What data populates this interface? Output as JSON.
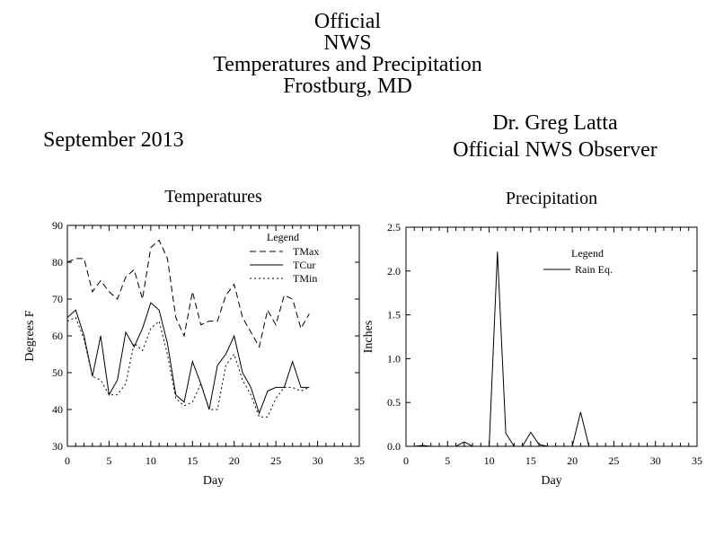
{
  "header": {
    "title_lines": [
      "Official",
      "NWS",
      "Temperatures and Precipitation",
      "Frostburg, MD"
    ],
    "observer_lines": [
      "Dr. Greg Latta",
      "Official NWS Observer"
    ],
    "month": "September 2013"
  },
  "chart_data": [
    {
      "type": "line",
      "title": "Temperatures",
      "xlabel": "Day",
      "ylabel": "Degrees F",
      "xlim": [
        0,
        35
      ],
      "ylim": [
        30,
        90
      ],
      "xticks": [
        0,
        5,
        10,
        15,
        20,
        25,
        30,
        35
      ],
      "yticks": [
        30,
        40,
        50,
        60,
        70,
        80,
        90
      ],
      "grid": false,
      "legend": {
        "title": "Legend",
        "placement": "top-right"
      },
      "series": [
        {
          "name": "TMax",
          "style": "dashed",
          "x": [
            0,
            1,
            2,
            3,
            4,
            5,
            6,
            7,
            8,
            9,
            10,
            11,
            12,
            13,
            14,
            15,
            16,
            17,
            18,
            19,
            20,
            21,
            22,
            23,
            24,
            25,
            26,
            27,
            28,
            29
          ],
          "values": [
            80,
            81,
            81,
            72,
            75,
            72,
            70,
            76,
            78,
            70,
            84,
            86,
            81,
            65,
            60,
            72,
            63,
            64,
            64,
            71,
            74,
            65,
            61,
            57,
            67,
            63,
            71,
            70,
            62,
            66
          ]
        },
        {
          "name": "TCur",
          "style": "solid",
          "x": [
            0,
            1,
            2,
            3,
            4,
            5,
            6,
            7,
            8,
            9,
            10,
            11,
            12,
            13,
            14,
            15,
            16,
            17,
            18,
            19,
            20,
            21,
            22,
            23,
            24,
            25,
            26,
            27,
            28,
            29
          ],
          "values": [
            65,
            67,
            60,
            49,
            60,
            44,
            48,
            61,
            57,
            62,
            69,
            67,
            58,
            44,
            42,
            53,
            47,
            40,
            52,
            55,
            60,
            50,
            46,
            39,
            45,
            46,
            46,
            53,
            46,
            46
          ]
        },
        {
          "name": "TMin",
          "style": "dotted",
          "x": [
            0,
            1,
            2,
            3,
            4,
            5,
            6,
            7,
            8,
            9,
            10,
            11,
            12,
            13,
            14,
            15,
            16,
            17,
            18,
            19,
            20,
            21,
            22,
            23,
            24,
            25,
            26,
            27,
            28,
            29
          ],
          "values": [
            64,
            65,
            59,
            49,
            48,
            44,
            44,
            47,
            58,
            56,
            62,
            64,
            55,
            43,
            41,
            42,
            47,
            40,
            40,
            52,
            55,
            48,
            44,
            38,
            38,
            43,
            46,
            46,
            45,
            46
          ]
        }
      ]
    },
    {
      "type": "line",
      "title": "Precipitation",
      "xlabel": "Day",
      "ylabel": "Inches",
      "xlim": [
        0,
        35
      ],
      "ylim": [
        0.0,
        2.5
      ],
      "xticks": [
        0,
        5,
        10,
        15,
        20,
        25,
        30,
        35
      ],
      "yticks": [
        0.0,
        0.5,
        1.0,
        1.5,
        2.0,
        2.5
      ],
      "ytick_labels": [
        "0.0",
        "0.5",
        "1.0",
        "1.5",
        "2.0",
        "2.5"
      ],
      "grid": false,
      "legend": {
        "title": "Legend",
        "placement": "top-right"
      },
      "series": [
        {
          "name": "Rain Eq.",
          "style": "solid",
          "x": [
            0,
            1,
            2,
            3,
            4,
            5,
            6,
            7,
            8,
            9,
            10,
            11,
            12,
            13,
            14,
            15,
            16,
            17,
            18,
            19,
            20,
            21,
            22,
            23,
            24,
            25,
            26,
            27,
            28,
            29
          ],
          "values": [
            0,
            0,
            0.01,
            0,
            0,
            0,
            0,
            0.05,
            0,
            0,
            0,
            2.22,
            0.15,
            0,
            0,
            0.16,
            0.02,
            0,
            0,
            0,
            0,
            0.39,
            0,
            0,
            0,
            0,
            0,
            0,
            0,
            0
          ]
        }
      ]
    }
  ]
}
